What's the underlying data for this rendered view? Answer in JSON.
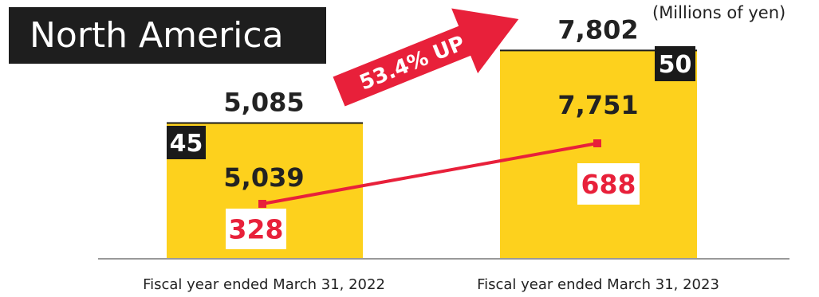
{
  "title": "North America",
  "unit_note": "(Millions of yen)",
  "growth_label": "53.4% UP",
  "colors": {
    "bar": "#fdd11d",
    "title_bg": "#1e1e1e",
    "accent_red": "#e8203a",
    "axis": "#999999",
    "text": "#222222"
  },
  "chart_data": {
    "type": "bar",
    "categories": [
      "Fiscal year ended March 31, 2022",
      "Fiscal year ended March 31, 2023"
    ],
    "ylim": [
      0,
      8200
    ],
    "series": [
      {
        "values": [
          5039,
          7751
        ]
      },
      {
        "values": [
          45,
          50
        ]
      }
    ],
    "totals": [
      5085,
      7802
    ],
    "line_series": {
      "values": [
        328,
        688
      ]
    }
  }
}
